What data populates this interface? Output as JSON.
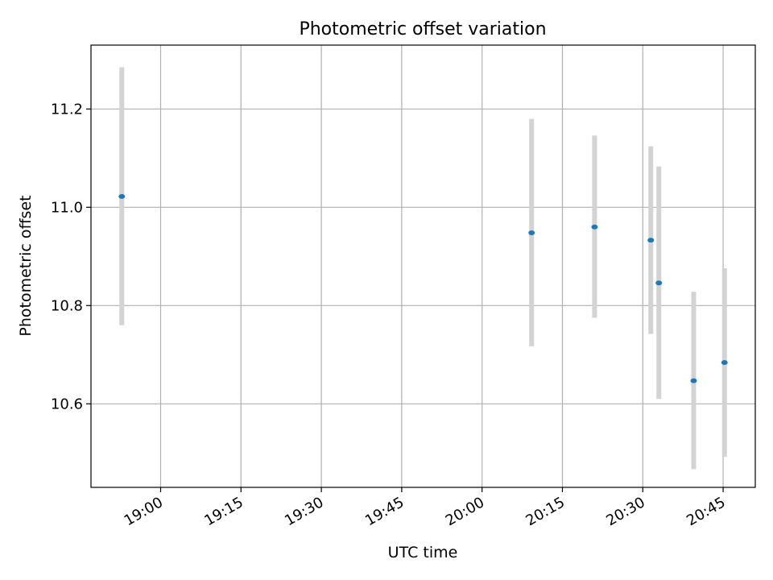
{
  "chart_data": {
    "type": "scatter",
    "title": "Photometric offset variation",
    "xlabel": "UTC time",
    "ylabel": "Photometric offset",
    "x_ticks": [
      "19:00",
      "19:15",
      "19:30",
      "19:45",
      "20:00",
      "20:15",
      "20:30",
      "20:45"
    ],
    "y_ticks": [
      "10.6",
      "10.8",
      "11.0",
      "11.2"
    ],
    "xlim": [
      "18:47",
      "20:51"
    ],
    "ylim": [
      10.43,
      11.33
    ],
    "grid": true,
    "colors": {
      "point": "#1f77b4",
      "errorbar": "#d3d3d3",
      "grid": "#b0b0b0"
    },
    "series": [
      {
        "points": [
          {
            "x": "18:52:45",
            "y": 11.022,
            "err_low": 10.76,
            "err_high": 11.285
          },
          {
            "x": "20:09:15",
            "y": 10.948,
            "err_low": 10.717,
            "err_high": 11.18
          },
          {
            "x": "20:21:00",
            "y": 10.96,
            "err_low": 10.775,
            "err_high": 11.146
          },
          {
            "x": "20:31:30",
            "y": 10.933,
            "err_low": 10.742,
            "err_high": 11.124
          },
          {
            "x": "20:33:00",
            "y": 10.846,
            "err_low": 10.61,
            "err_high": 11.083
          },
          {
            "x": "20:39:30",
            "y": 10.647,
            "err_low": 10.467,
            "err_high": 10.828
          },
          {
            "x": "20:45:15",
            "y": 10.684,
            "err_low": 10.492,
            "err_high": 10.876
          }
        ]
      }
    ]
  }
}
